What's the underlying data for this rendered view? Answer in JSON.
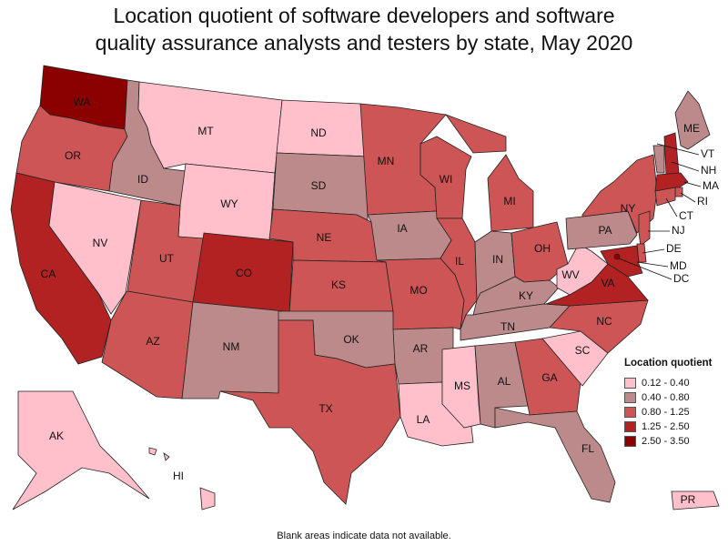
{
  "title_line1": "Location quotient of software developers and software",
  "title_line2": "quality assurance analysts and testers by state, May 2020",
  "legend": {
    "title": "Location quotient",
    "classes": [
      {
        "label": "0.12 - 0.40",
        "color": "#ffc0cb"
      },
      {
        "label": "0.40 - 0.80",
        "color": "#bc8a8a"
      },
      {
        "label": "0.80 - 1.25",
        "color": "#cd5555"
      },
      {
        "label": "1.25 - 2.50",
        "color": "#b22222"
      },
      {
        "label": "2.50 - 3.50",
        "color": "#8b0000"
      }
    ]
  },
  "footnote": "Blank areas indicate data not available.",
  "states": [
    {
      "abbr": "WA",
      "class": 4
    },
    {
      "abbr": "OR",
      "class": 2
    },
    {
      "abbr": "CA",
      "class": 3
    },
    {
      "abbr": "NV",
      "class": 0
    },
    {
      "abbr": "ID",
      "class": 1
    },
    {
      "abbr": "MT",
      "class": 0
    },
    {
      "abbr": "WY",
      "class": 0
    },
    {
      "abbr": "UT",
      "class": 2
    },
    {
      "abbr": "AZ",
      "class": 2
    },
    {
      "abbr": "CO",
      "class": 3
    },
    {
      "abbr": "NM",
      "class": 1
    },
    {
      "abbr": "ND",
      "class": 0
    },
    {
      "abbr": "SD",
      "class": 1
    },
    {
      "abbr": "NE",
      "class": 2
    },
    {
      "abbr": "KS",
      "class": 2
    },
    {
      "abbr": "OK",
      "class": 1
    },
    {
      "abbr": "TX",
      "class": 2
    },
    {
      "abbr": "MN",
      "class": 2
    },
    {
      "abbr": "IA",
      "class": 1
    },
    {
      "abbr": "MO",
      "class": 2
    },
    {
      "abbr": "AR",
      "class": 1
    },
    {
      "abbr": "LA",
      "class": 0
    },
    {
      "abbr": "WI",
      "class": 2
    },
    {
      "abbr": "IL",
      "class": 2
    },
    {
      "abbr": "MI",
      "class": 2
    },
    {
      "abbr": "IN",
      "class": 1
    },
    {
      "abbr": "OH",
      "class": 2
    },
    {
      "abbr": "KY",
      "class": 1
    },
    {
      "abbr": "TN",
      "class": 1
    },
    {
      "abbr": "MS",
      "class": 0
    },
    {
      "abbr": "AL",
      "class": 1
    },
    {
      "abbr": "GA",
      "class": 2
    },
    {
      "abbr": "FL",
      "class": 1
    },
    {
      "abbr": "SC",
      "class": 0
    },
    {
      "abbr": "NC",
      "class": 2
    },
    {
      "abbr": "VA",
      "class": 3
    },
    {
      "abbr": "WV",
      "class": 0
    },
    {
      "abbr": "PA",
      "class": 1
    },
    {
      "abbr": "NY",
      "class": 2
    },
    {
      "abbr": "ME",
      "class": 1
    },
    {
      "abbr": "VT",
      "class": 1
    },
    {
      "abbr": "NH",
      "class": 3
    },
    {
      "abbr": "MA",
      "class": 3
    },
    {
      "abbr": "RI",
      "class": 2
    },
    {
      "abbr": "CT",
      "class": 2
    },
    {
      "abbr": "NJ",
      "class": 2
    },
    {
      "abbr": "DE",
      "class": 2
    },
    {
      "abbr": "MD",
      "class": 3
    },
    {
      "abbr": "DC",
      "class": 4
    },
    {
      "abbr": "AK",
      "class": 0
    },
    {
      "abbr": "HI",
      "class": 0
    },
    {
      "abbr": "PR",
      "class": 0
    }
  ]
}
